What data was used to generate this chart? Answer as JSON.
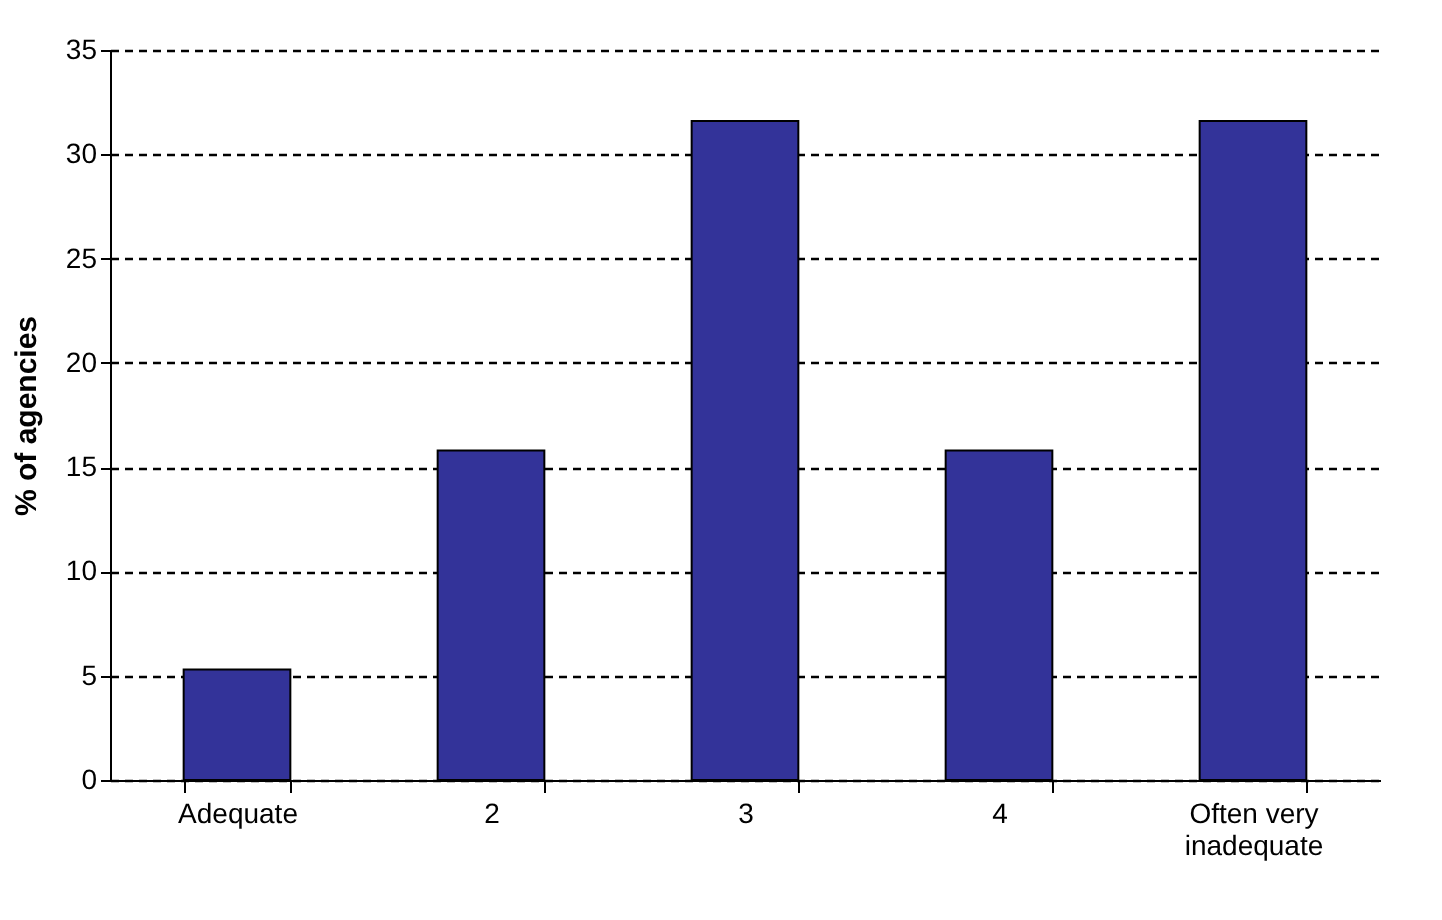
{
  "chart_data": {
    "type": "bar",
    "ylabel": "% of agencies",
    "categories": [
      "Adequate",
      "2",
      "3",
      "4",
      "Often very inadequate"
    ],
    "values": [
      5.3,
      15.8,
      31.6,
      15.8,
      31.6
    ],
    "color": "#333399",
    "ylim": [
      0,
      35
    ],
    "yticks": [
      0,
      5,
      10,
      15,
      20,
      25,
      30,
      35
    ],
    "grid": "y",
    "line_style": "dashed"
  }
}
